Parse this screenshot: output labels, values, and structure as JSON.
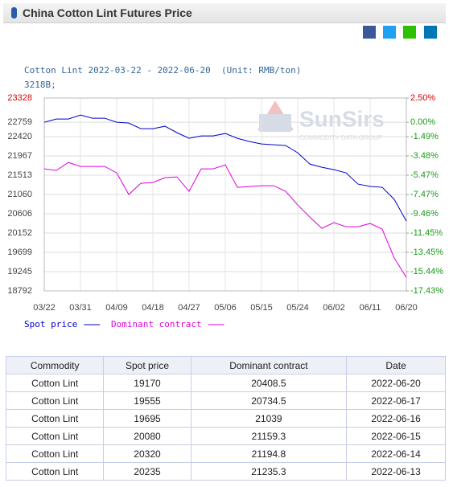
{
  "header": {
    "title": "China Cotton Lint Futures Price"
  },
  "watermark": {
    "name": "SunSirs",
    "tagline": "COMMODITY DATA GROUP"
  },
  "chart_data": {
    "type": "line",
    "title": "Cotton Lint 2022-03-22 - 2022-06-20  (Unit: RMB/ton)",
    "subtitle": "3218B;",
    "x": [
      "03/22",
      "03/25",
      "03/28",
      "03/31",
      "04/03",
      "04/06",
      "04/09",
      "04/12",
      "04/15",
      "04/18",
      "04/21",
      "04/24",
      "04/27",
      "04/30",
      "05/03",
      "05/06",
      "05/09",
      "05/12",
      "05/15",
      "05/18",
      "05/21",
      "05/24",
      "05/27",
      "05/30",
      "06/02",
      "06/05",
      "06/08",
      "06/11",
      "06/14",
      "06/17",
      "06/20"
    ],
    "xticks": [
      "03/22",
      "03/31",
      "04/09",
      "04/18",
      "04/27",
      "05/06",
      "05/15",
      "05/24",
      "06/02",
      "06/11",
      "06/20"
    ],
    "series": [
      {
        "name": "Spot price",
        "color": "#0000cc",
        "values": [
          22759,
          22835,
          22835,
          22929,
          22854,
          22854,
          22759,
          22740,
          22608,
          22608,
          22665,
          22513,
          22381,
          22438,
          22438,
          22495,
          22381,
          22305,
          22249,
          22230,
          22211,
          22041,
          21776,
          21701,
          21644,
          21569,
          21304,
          21248,
          21229,
          20945,
          20434
        ]
      },
      {
        "name": "Dominant contract",
        "color": "#dd00dd",
        "values": [
          21663,
          21625,
          21814,
          21720,
          21720,
          21720,
          21569,
          21059,
          21323,
          21342,
          21455,
          21474,
          21134,
          21663,
          21663,
          21758,
          21228,
          21247,
          21266,
          21266,
          21134,
          20813,
          20529,
          20264,
          20397,
          20302,
          20302,
          20378,
          20245,
          19565,
          19111
        ]
      }
    ],
    "ylim": [
      18792,
      23328
    ],
    "yticks": [
      23328,
      22759,
      22420,
      21967,
      21513,
      21060,
      20606,
      20152,
      19699,
      19245,
      18792
    ],
    "y2lim": [
      -17.43,
      2.5
    ],
    "y2ticks": [
      {
        "value": 2.5,
        "label": "2.50%"
      },
      {
        "value": 0,
        "label": "0.00%"
      },
      {
        "value": -1.49,
        "label": "-1.49%"
      },
      {
        "value": -3.48,
        "label": "-3.48%"
      },
      {
        "value": -5.47,
        "label": "-5.47%"
      },
      {
        "value": -7.47,
        "label": "-7.47%"
      },
      {
        "value": -9.46,
        "label": "-9.46%"
      },
      {
        "value": -11.45,
        "label": "-11.45%"
      },
      {
        "value": -13.45,
        "label": "-13.45%"
      },
      {
        "value": -15.44,
        "label": "-15.44%"
      },
      {
        "value": -17.43,
        "label": "-17.43%"
      }
    ],
    "grid": true
  },
  "table": {
    "header": [
      "Commodity",
      "Spot price",
      "Dominant contract",
      "Date"
    ],
    "rows": [
      [
        "Cotton Lint",
        "19170",
        "20408.5",
        "2022-06-20"
      ],
      [
        "Cotton Lint",
        "19555",
        "20734.5",
        "2022-06-17"
      ],
      [
        "Cotton Lint",
        "19695",
        "21039",
        "2022-06-16"
      ],
      [
        "Cotton Lint",
        "20080",
        "21159.3",
        "2022-06-15"
      ],
      [
        "Cotton Lint",
        "20320",
        "21194.8",
        "2022-06-14"
      ],
      [
        "Cotton Lint",
        "20235",
        "21235.3",
        "2022-06-13"
      ]
    ]
  }
}
